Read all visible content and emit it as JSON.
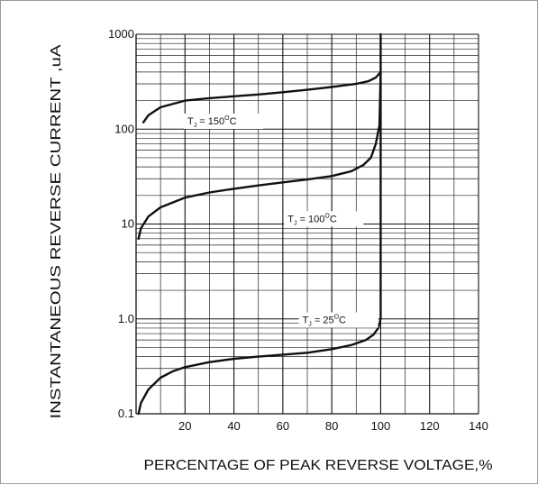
{
  "chart_data": {
    "type": "line",
    "title": "",
    "xlabel": "PERCENTAGE OF PEAK REVERSE VOLTAGE,%",
    "ylabel": "INSTANTANEOUS REVERSE CURRENT ,uA",
    "xlim": [
      0,
      140
    ],
    "ylim": [
      0.1,
      1000
    ],
    "y_scale": "log",
    "grid": true,
    "x_ticks": [
      20,
      40,
      60,
      80,
      100,
      120,
      140
    ],
    "x_tick_labels": [
      "20",
      "40",
      "60",
      "80",
      "100",
      "120",
      "140"
    ],
    "y_ticks": [
      0.1,
      1,
      10,
      100,
      1000
    ],
    "y_tick_labels": [
      "0.1",
      "1.0",
      "10",
      "100",
      "1000"
    ],
    "series": [
      {
        "name": "",
        "annotation": {
          "base": "T",
          "sub": "J",
          "mid": " = 150",
          "sup": "O",
          "tail": "C",
          "x": 21,
          "y": 112
        },
        "points": [
          [
            3,
            118
          ],
          [
            5,
            140
          ],
          [
            10,
            170
          ],
          [
            20,
            200
          ],
          [
            30,
            212
          ],
          [
            40,
            222
          ],
          [
            50,
            232
          ],
          [
            60,
            245
          ],
          [
            70,
            260
          ],
          [
            80,
            278
          ],
          [
            90,
            300
          ],
          [
            95,
            320
          ],
          [
            98,
            350
          ],
          [
            100,
            400
          ]
        ]
      },
      {
        "name": "",
        "annotation": {
          "base": "T",
          "sub": "J",
          "mid": " = 100",
          "sup": "O",
          "tail": "C",
          "x": 62,
          "y": 10.5
        },
        "points": [
          [
            1,
            7
          ],
          [
            2,
            9
          ],
          [
            5,
            12
          ],
          [
            10,
            15
          ],
          [
            20,
            19
          ],
          [
            30,
            21.5
          ],
          [
            40,
            23.5
          ],
          [
            50,
            25.5
          ],
          [
            60,
            27.5
          ],
          [
            70,
            29.5
          ],
          [
            80,
            32
          ],
          [
            88,
            36
          ],
          [
            93,
            42
          ],
          [
            96,
            50
          ],
          [
            98,
            70
          ],
          [
            99.5,
            110
          ],
          [
            100,
            400
          ]
        ]
      },
      {
        "name": "",
        "annotation": {
          "base": "T",
          "sub": "J",
          "mid": " = 25",
          "sup": "O",
          "tail": "C",
          "x": 68,
          "y": 0.9
        },
        "points": [
          [
            1,
            0.1
          ],
          [
            2,
            0.13
          ],
          [
            5,
            0.18
          ],
          [
            10,
            0.24
          ],
          [
            15,
            0.28
          ],
          [
            20,
            0.31
          ],
          [
            30,
            0.35
          ],
          [
            40,
            0.38
          ],
          [
            50,
            0.4
          ],
          [
            60,
            0.42
          ],
          [
            70,
            0.44
          ],
          [
            80,
            0.48
          ],
          [
            88,
            0.53
          ],
          [
            94,
            0.6
          ],
          [
            97,
            0.68
          ],
          [
            99,
            0.8
          ],
          [
            100,
            1
          ],
          [
            100,
            10
          ],
          [
            100,
            100
          ],
          [
            100,
            1000
          ]
        ]
      }
    ]
  }
}
